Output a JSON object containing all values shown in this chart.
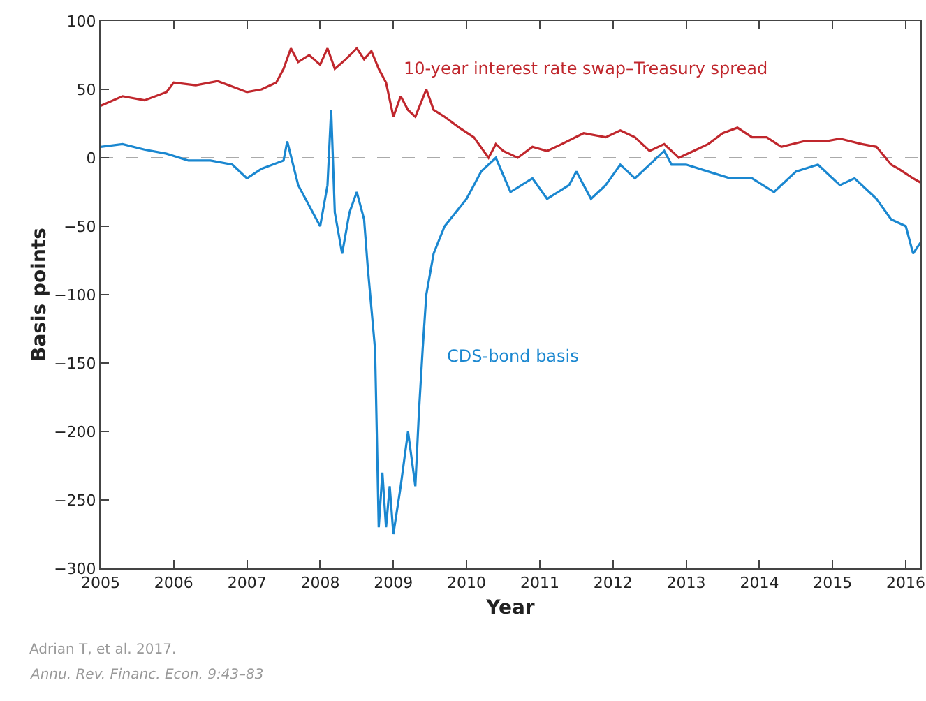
{
  "chart_data": {
    "type": "line",
    "xlabel": "Year",
    "ylabel": "Basis points",
    "xlim": [
      2005,
      2016.2
    ],
    "xticks": [
      2005,
      2006,
      2007,
      2008,
      2009,
      2010,
      2011,
      2012,
      2013,
      2014,
      2015,
      2016
    ],
    "ylim": [
      -300,
      100
    ],
    "yticks": [
      -300,
      -250,
      -200,
      -150,
      -100,
      -50,
      0,
      50,
      100
    ],
    "grid": false,
    "legend": false,
    "marker": "none",
    "line_style": "solid",
    "ref_lines": [
      {
        "axis": "y",
        "value": 0,
        "color": "#aaaaaa",
        "line_style": "dashed"
      }
    ],
    "series": [
      {
        "name": "10-year interest rate swap–Treasury spread",
        "color": "#c0272d",
        "x": [
          2005,
          2005.3,
          2005.6,
          2005.9,
          2006.0,
          2006.3,
          2006.6,
          2006.8,
          2007.0,
          2007.2,
          2007.4,
          2007.5,
          2007.6,
          2007.7,
          2007.85,
          2008.0,
          2008.1,
          2008.2,
          2008.35,
          2008.5,
          2008.6,
          2008.7,
          2008.8,
          2008.9,
          2009.0,
          2009.1,
          2009.2,
          2009.3,
          2009.45,
          2009.55,
          2009.7,
          2009.9,
          2010.1,
          2010.3,
          2010.4,
          2010.5,
          2010.7,
          2010.9,
          2011.1,
          2011.3,
          2011.6,
          2011.9,
          2012.1,
          2012.3,
          2012.5,
          2012.7,
          2012.9,
          2013.1,
          2013.3,
          2013.5,
          2013.7,
          2013.9,
          2014.1,
          2014.3,
          2014.6,
          2014.9,
          2015.1,
          2015.4,
          2015.6,
          2015.8,
          2015.9,
          2016.1,
          2016.2
        ],
        "values": [
          38,
          45,
          42,
          48,
          55,
          53,
          56,
          52,
          48,
          50,
          55,
          65,
          80,
          70,
          75,
          68,
          80,
          65,
          72,
          80,
          72,
          78,
          65,
          55,
          30,
          45,
          35,
          30,
          50,
          35,
          30,
          22,
          15,
          0,
          10,
          5,
          0,
          8,
          5,
          10,
          18,
          15,
          20,
          15,
          5,
          10,
          0,
          5,
          10,
          18,
          22,
          15,
          15,
          8,
          12,
          12,
          14,
          10,
          8,
          -5,
          -8,
          -15,
          -18
        ]
      },
      {
        "name": "CDS-bond basis",
        "color": "#1a87d0",
        "x": [
          2005,
          2005.3,
          2005.6,
          2005.9,
          2006.2,
          2006.5,
          2006.8,
          2007.0,
          2007.2,
          2007.5,
          2007.55,
          2007.7,
          2007.9,
          2008.0,
          2008.1,
          2008.15,
          2008.2,
          2008.3,
          2008.4,
          2008.5,
          2008.6,
          2008.65,
          2008.75,
          2008.8,
          2008.85,
          2008.9,
          2008.95,
          2009.0,
          2009.1,
          2009.2,
          2009.3,
          2009.35,
          2009.4,
          2009.45,
          2009.55,
          2009.7,
          2009.85,
          2010.0,
          2010.2,
          2010.4,
          2010.6,
          2010.9,
          2011.1,
          2011.4,
          2011.5,
          2011.7,
          2011.9,
          2012.1,
          2012.3,
          2012.5,
          2012.7,
          2012.8,
          2013.0,
          2013.3,
          2013.6,
          2013.9,
          2014.2,
          2014.5,
          2014.8,
          2015.1,
          2015.3,
          2015.6,
          2015.8,
          2016.0,
          2016.1,
          2016.2
        ],
        "values": [
          8,
          10,
          6,
          3,
          -2,
          -2,
          -5,
          -15,
          -8,
          -2,
          12,
          -20,
          -40,
          -50,
          -20,
          35,
          -40,
          -70,
          -40,
          -25,
          -45,
          -80,
          -140,
          -270,
          -230,
          -270,
          -240,
          -275,
          -240,
          -200,
          -240,
          -185,
          -140,
          -100,
          -70,
          -50,
          -40,
          -30,
          -10,
          0,
          -25,
          -15,
          -30,
          -20,
          -10,
          -30,
          -20,
          -5,
          -15,
          -5,
          5,
          -5,
          -5,
          -10,
          -15,
          -15,
          -25,
          -10,
          -5,
          -20,
          -15,
          -30,
          -45,
          -50,
          -70,
          -62
        ]
      }
    ],
    "annotations": [
      "Adrian T, et al. 2017.",
      "Annu. Rev. Financ. Econ. 9:43–83"
    ]
  }
}
